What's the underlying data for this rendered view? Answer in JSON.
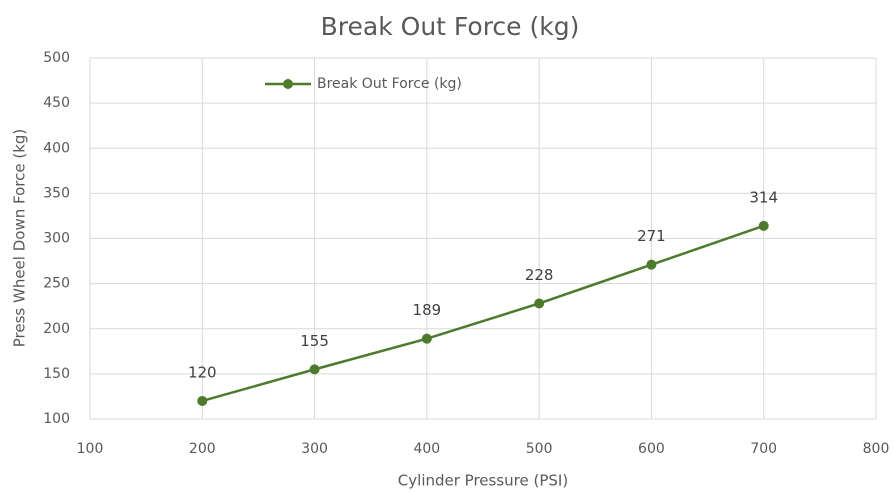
{
  "chart_data": {
    "type": "line",
    "title": "Break Out Force (kg)",
    "x_label": "Cylinder Pressure (PSI)",
    "y_label": "Press Wheel Down Force (kg)",
    "x": [
      200,
      300,
      400,
      500,
      600,
      700
    ],
    "series": [
      {
        "name": "Break Out Force (kg)",
        "color": "#4e7a2e",
        "values": [
          120,
          155,
          189,
          228,
          271,
          314
        ]
      }
    ],
    "xlim": [
      100,
      800
    ],
    "xticks": [
      100,
      200,
      300,
      400,
      500,
      600,
      700,
      800
    ],
    "ylim": [
      100,
      500
    ],
    "yticks": [
      100,
      150,
      200,
      250,
      300,
      350,
      400,
      450,
      500
    ],
    "grid": true,
    "legend": "upper left",
    "data_labels": true
  }
}
